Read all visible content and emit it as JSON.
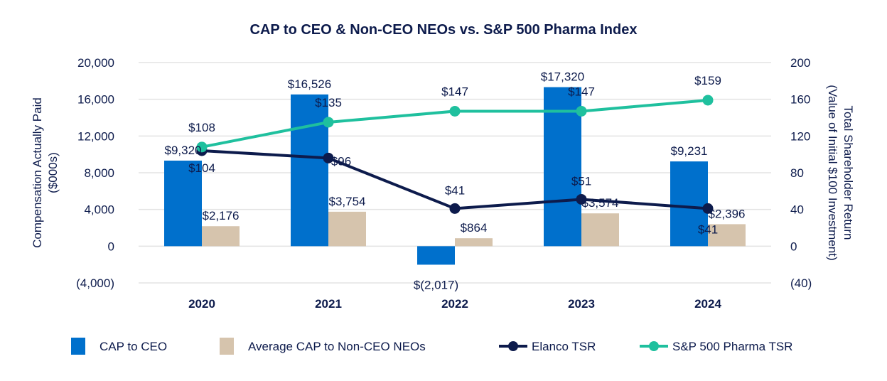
{
  "chart_data": {
    "type": "bar",
    "title": "CAP to CEO & Non-CEO NEOs vs. S&P 500 Pharma Index",
    "categories": [
      "2020",
      "2021",
      "2022",
      "2023",
      "2024"
    ],
    "ylabel": [
      "Compensation Actually Paid",
      "($000s)"
    ],
    "y2label": [
      "Total Shareholder Return",
      "(Value of Initial $100 Investment)"
    ],
    "ylim": [
      -4000,
      20000
    ],
    "y2lim": [
      -40,
      200
    ],
    "yticks": [
      20000,
      16000,
      12000,
      8000,
      4000,
      0,
      -4000
    ],
    "ytick_labels": [
      "20,000",
      "16,000",
      "12,000",
      "8,000",
      "4,000",
      "0",
      "(4,000)"
    ],
    "y2ticks": [
      200,
      160,
      120,
      80,
      40,
      0,
      -40
    ],
    "y2tick_labels": [
      "200",
      "160",
      "120",
      "80",
      "40",
      "0",
      "(40)"
    ],
    "grid": true,
    "legend_position": "bottom",
    "series": [
      {
        "name": "CAP to CEO",
        "kind": "bar",
        "axis": "left",
        "color": "#0070cc",
        "values": [
          9320,
          16526,
          -2017,
          17320,
          9231
        ],
        "labels": [
          "$9,320",
          "$16,526",
          "$(2,017)",
          "$17,320",
          "$9,231"
        ]
      },
      {
        "name": "Average CAP to Non-CEO NEOs",
        "kind": "bar",
        "axis": "left",
        "color": "#d6c4ad",
        "values": [
          2176,
          3754,
          864,
          3574,
          2396
        ],
        "labels": [
          "$2,176",
          "$3,754",
          "$864",
          "$3,574",
          "$2,396"
        ]
      },
      {
        "name": "Elanco TSR",
        "kind": "line",
        "axis": "right",
        "color": "#0d1b4c",
        "values": [
          104,
          96,
          41,
          51,
          41
        ],
        "labels": [
          "$104",
          "$96",
          "$41",
          "$51",
          "$41"
        ]
      },
      {
        "name": "S&P 500 Pharma TSR",
        "kind": "line",
        "axis": "right",
        "color": "#1fc09e",
        "values": [
          108,
          135,
          147,
          147,
          159
        ],
        "labels": [
          "$108",
          "$135",
          "$147",
          "$147",
          "$159"
        ]
      }
    ]
  }
}
